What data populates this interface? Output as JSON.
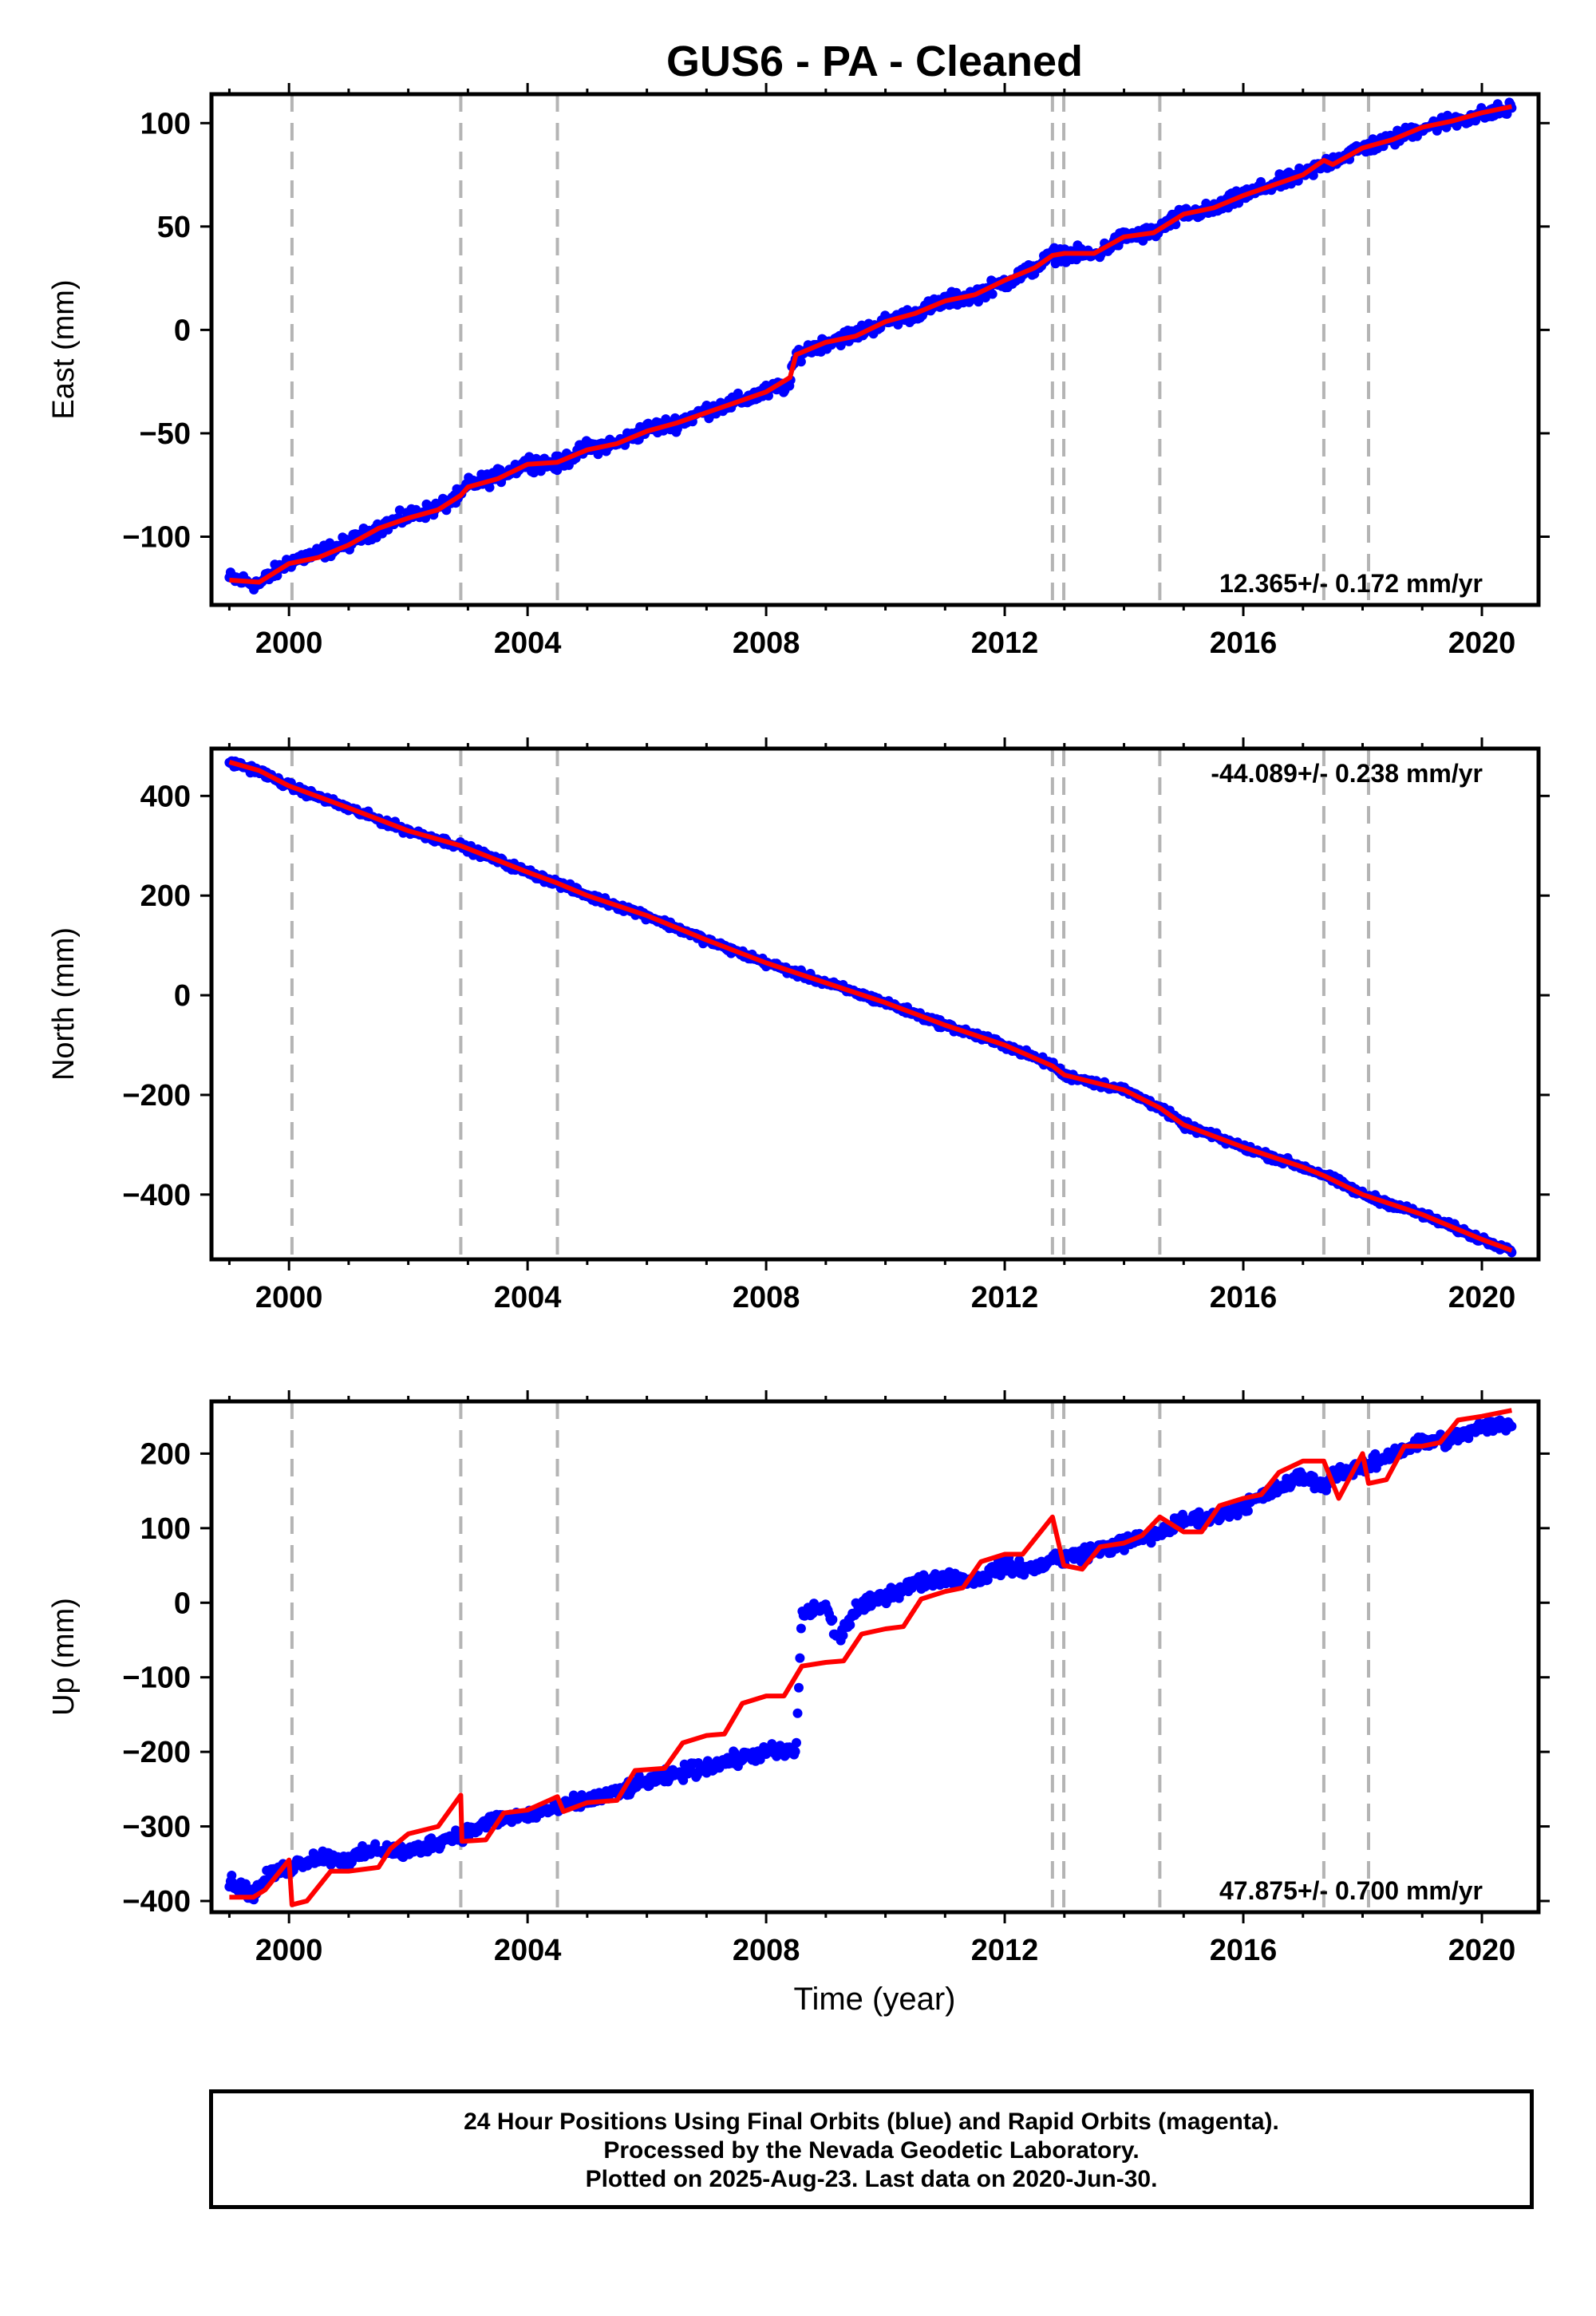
{
  "title": "GUS6  - PA - Cleaned",
  "xlabel": "Time (year)",
  "footer": [
    "24 Hour Positions Using Final Orbits (blue) and Rapid Orbits (magenta).",
    "Processed by the Nevada Geodetic Laboratory.",
    "Plotted on 2025-Aug-23. Last data on 2020-Jun-30."
  ],
  "colors": {
    "data": "#0000ff",
    "model": "#ff0000",
    "eventline": "#b4b4b4",
    "frame": "#000000"
  },
  "chart_data": [
    {
      "type": "scatter",
      "ylabel": "East (mm)",
      "xlim": [
        1998.7,
        2020.95
      ],
      "ylim": [
        -133,
        114
      ],
      "xticks": [
        2000,
        2004,
        2008,
        2012,
        2016,
        2020
      ],
      "yticks": [
        -100,
        -50,
        0,
        50,
        100
      ],
      "event_lines": [
        2000.05,
        2002.88,
        2004.5,
        2012.8,
        2012.99,
        2014.6,
        2017.35,
        2018.1
      ],
      "rate_label": "12.365+/- 0.172 mm/yr",
      "rate_position": "bottom-right",
      "series": [
        {
          "x": [
            1999.0,
            1999.5,
            2000.0,
            2000.5,
            2001.0,
            2001.5,
            2002.0,
            2002.5,
            2002.88,
            2003.0,
            2003.5,
            2004.0,
            2004.5,
            2005.0,
            2005.5,
            2006.0,
            2006.5,
            2007.0,
            2007.5,
            2008.0,
            2008.4,
            2008.5,
            2009.0,
            2009.5,
            2010.0,
            2010.5,
            2011.0,
            2011.5,
            2012.0,
            2012.5,
            2012.8,
            2013.0,
            2013.5,
            2014.0,
            2014.5,
            2015.0,
            2015.5,
            2016.0,
            2016.5,
            2017.0,
            2017.35,
            2017.5,
            2018.0,
            2018.5,
            2019.0,
            2019.5,
            2020.0,
            2020.5
          ],
          "y": [
            -120,
            -123,
            -112,
            -108,
            -103,
            -96,
            -90,
            -86,
            -80,
            -75,
            -71,
            -64,
            -65,
            -57,
            -55,
            -48,
            -45,
            -39,
            -35,
            -30,
            -26,
            -12,
            -6,
            -2,
            4,
            8,
            14,
            17,
            23,
            30,
            36,
            37,
            36,
            45,
            47,
            56,
            58,
            65,
            70,
            75,
            80,
            82,
            88,
            92,
            98,
            101,
            104,
            107
          ]
        }
      ],
      "model": {
        "x": [
          1999.0,
          1999.5,
          2000.0,
          2000.5,
          2001.0,
          2001.5,
          2002.0,
          2002.5,
          2002.88,
          2003.0,
          2003.5,
          2004.0,
          2004.5,
          2005.0,
          2005.5,
          2006.0,
          2006.5,
          2007.0,
          2007.5,
          2008.0,
          2008.4,
          2008.5,
          2009.0,
          2009.5,
          2010.0,
          2010.5,
          2011.0,
          2011.5,
          2012.0,
          2012.5,
          2012.8,
          2013.0,
          2013.5,
          2014.0,
          2014.5,
          2015.0,
          2015.5,
          2016.0,
          2016.5,
          2017.0,
          2017.35,
          2017.5,
          2018.0,
          2018.5,
          2019.0,
          2019.5,
          2020.0,
          2020.5
        ],
        "y": [
          -121,
          -122,
          -113,
          -110,
          -104,
          -96,
          -91,
          -87,
          -80,
          -76,
          -72,
          -65,
          -64,
          -58,
          -55,
          -49,
          -45,
          -40,
          -35,
          -30,
          -23,
          -12,
          -6,
          -3,
          4,
          8,
          14,
          17,
          24,
          30,
          36,
          37,
          37,
          45,
          47,
          56,
          59,
          65,
          70,
          75,
          82,
          80,
          88,
          92,
          98,
          101,
          105,
          108
        ]
      }
    },
    {
      "type": "scatter",
      "ylabel": "North (mm)",
      "xlim": [
        1998.7,
        2020.95
      ],
      "ylim": [
        -530,
        495
      ],
      "xticks": [
        2000,
        2004,
        2008,
        2012,
        2016,
        2020
      ],
      "yticks": [
        -400,
        -200,
        0,
        200,
        400
      ],
      "event_lines": [
        2000.05,
        2002.88,
        2004.5,
        2012.8,
        2012.99,
        2014.6,
        2017.35,
        2018.1
      ],
      "rate_label": "-44.089+/- 0.238 mm/yr",
      "rate_position": "top-right",
      "series": [
        {
          "x": [
            1999.0,
            1999.5,
            2000.0,
            2001.0,
            2002.0,
            2002.88,
            2004.0,
            2004.5,
            2005.0,
            2006.0,
            2007.0,
            2008.0,
            2009.0,
            2010.0,
            2011.0,
            2012.0,
            2012.8,
            2013.0,
            2014.0,
            2014.6,
            2015.0,
            2016.0,
            2017.0,
            2017.35,
            2018.0,
            2019.0,
            2020.0,
            2020.5
          ],
          "y": [
            468,
            450,
            420,
            375,
            330,
            300,
            247,
            225,
            200,
            160,
            110,
            65,
            25,
            -15,
            -60,
            -100,
            -140,
            -160,
            -190,
            -225,
            -260,
            -305,
            -345,
            -360,
            -400,
            -440,
            -490,
            -510
          ]
        }
      ],
      "model": {
        "x": [
          1999.0,
          1999.5,
          2000.0,
          2001.0,
          2002.0,
          2002.88,
          2004.0,
          2004.5,
          2005.0,
          2006.0,
          2007.0,
          2008.0,
          2009.0,
          2010.0,
          2011.0,
          2012.0,
          2012.8,
          2013.0,
          2014.0,
          2014.6,
          2015.0,
          2016.0,
          2017.0,
          2017.35,
          2018.0,
          2019.0,
          2020.0,
          2020.5
        ],
        "y": [
          468,
          451,
          420,
          376,
          330,
          300,
          247,
          225,
          200,
          160,
          111,
          65,
          25,
          -15,
          -60,
          -100,
          -142,
          -160,
          -190,
          -226,
          -260,
          -305,
          -345,
          -362,
          -400,
          -440,
          -490,
          -512
        ]
      }
    },
    {
      "type": "scatter",
      "ylabel": "Up (mm)",
      "xlim": [
        1998.7,
        2020.95
      ],
      "ylim": [
        -415,
        270
      ],
      "xticks": [
        2000,
        2004,
        2008,
        2012,
        2016,
        2020
      ],
      "yticks": [
        -400,
        -300,
        -200,
        -100,
        0,
        100,
        200
      ],
      "event_lines": [
        2000.05,
        2002.88,
        2004.5,
        2012.8,
        2012.99,
        2014.6,
        2017.35,
        2018.1
      ],
      "rate_label": "47.875+/- 0.700 mm/yr",
      "rate_position": "bottom-right",
      "series": [
        {
          "x": [
            1999.0,
            1999.4,
            1999.7,
            2000.0,
            2000.5,
            2001.0,
            2001.5,
            2002.0,
            2002.5,
            2002.9,
            2003.2,
            2003.5,
            2004.0,
            2004.5,
            2005.0,
            2005.5,
            2006.0,
            2006.5,
            2007.0,
            2007.5,
            2008.0,
            2008.5,
            2008.6,
            2009.0,
            2009.2,
            2009.5,
            2010.0,
            2010.5,
            2011.0,
            2011.5,
            2012.0,
            2012.5,
            2012.8,
            2013.0,
            2013.5,
            2014.0,
            2014.5,
            2015.0,
            2015.5,
            2016.0,
            2016.5,
            2017.0,
            2017.35,
            2017.5,
            2018.0,
            2018.5,
            2019.0,
            2019.5,
            2020.0,
            2020.5
          ],
          "y": [
            -375,
            -390,
            -365,
            -355,
            -340,
            -345,
            -330,
            -335,
            -320,
            -310,
            -300,
            -290,
            -285,
            -275,
            -265,
            -255,
            -240,
            -230,
            -220,
            -210,
            -200,
            -200,
            -15,
            -5,
            -50,
            -10,
            10,
            25,
            35,
            30,
            50,
            45,
            60,
            60,
            70,
            80,
            90,
            110,
            115,
            130,
            150,
            170,
            155,
            175,
            180,
            200,
            215,
            220,
            235,
            240
          ]
        }
      ],
      "model": {
        "x": [
          1999.0,
          1999.4,
          1999.6,
          2000.0,
          2000.05,
          2000.3,
          2000.7,
          2001.0,
          2001.5,
          2001.7,
          2002.0,
          2002.5,
          2002.88,
          2002.9,
          2003.3,
          2003.6,
          2004.0,
          2004.5,
          2004.6,
          2005.0,
          2005.5,
          2005.8,
          2006.3,
          2006.6,
          2007.0,
          2007.3,
          2007.6,
          2008.0,
          2008.3,
          2008.6,
          2009.0,
          2009.3,
          2009.6,
          2010.0,
          2010.3,
          2010.6,
          2011.0,
          2011.3,
          2011.6,
          2012.0,
          2012.3,
          2012.8,
          2012.99,
          2013.3,
          2013.6,
          2014.0,
          2014.3,
          2014.6,
          2015.0,
          2015.3,
          2015.6,
          2016.0,
          2016.3,
          2016.6,
          2017.0,
          2017.35,
          2017.6,
          2018.0,
          2018.1,
          2018.4,
          2018.7,
          2019.0,
          2019.3,
          2019.6,
          2020.0,
          2020.5
        ],
        "y": [
          -395,
          -395,
          -385,
          -345,
          -405,
          -400,
          -360,
          -360,
          -355,
          -330,
          -310,
          -300,
          -258,
          -320,
          -318,
          -282,
          -278,
          -260,
          -280,
          -268,
          -265,
          -225,
          -222,
          -188,
          -178,
          -176,
          -135,
          -125,
          -125,
          -85,
          -80,
          -78,
          -42,
          -35,
          -32,
          5,
          15,
          20,
          55,
          65,
          65,
          115,
          50,
          45,
          75,
          80,
          90,
          115,
          95,
          95,
          130,
          140,
          145,
          175,
          190,
          190,
          140,
          200,
          160,
          165,
          210,
          210,
          215,
          245,
          250,
          258
        ]
      }
    }
  ]
}
